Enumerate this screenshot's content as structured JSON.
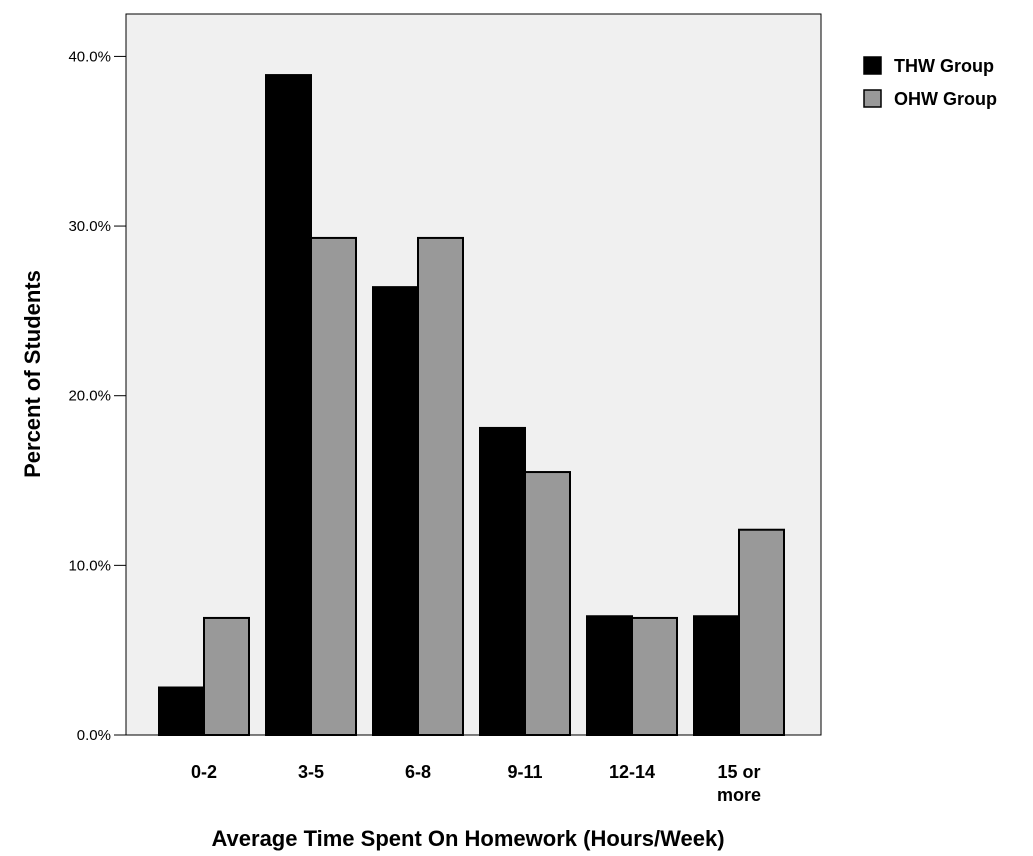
{
  "chart_data": {
    "type": "bar",
    "categories": [
      "0-2",
      "3-5",
      "6-8",
      "9-11",
      "12-14",
      "15 or more"
    ],
    "category_lines": [
      [
        "0-2"
      ],
      [
        "3-5"
      ],
      [
        "6-8"
      ],
      [
        "9-11"
      ],
      [
        "12-14"
      ],
      [
        "15 or",
        "more"
      ]
    ],
    "series": [
      {
        "name": "THW Group",
        "color": "#000000",
        "values": [
          2.8,
          38.9,
          26.4,
          18.1,
          7.0,
          7.0
        ]
      },
      {
        "name": "OHW Group",
        "color": "#999999",
        "values": [
          6.9,
          29.3,
          29.3,
          15.5,
          6.9,
          12.1
        ]
      }
    ],
    "xlabel": "Average Time Spent On Homework (Hours/Week)",
    "ylabel": "Percent of Students",
    "ylim": [
      0,
      42.5
    ],
    "yticks": [
      0,
      10,
      20,
      30,
      40
    ],
    "ytick_labels": [
      "0.0%",
      "10.0%",
      "20.0%",
      "30.0%",
      "40.0%"
    ],
    "plot_background": "#f0f0f0",
    "grid": false,
    "legend_position": "top-right"
  }
}
